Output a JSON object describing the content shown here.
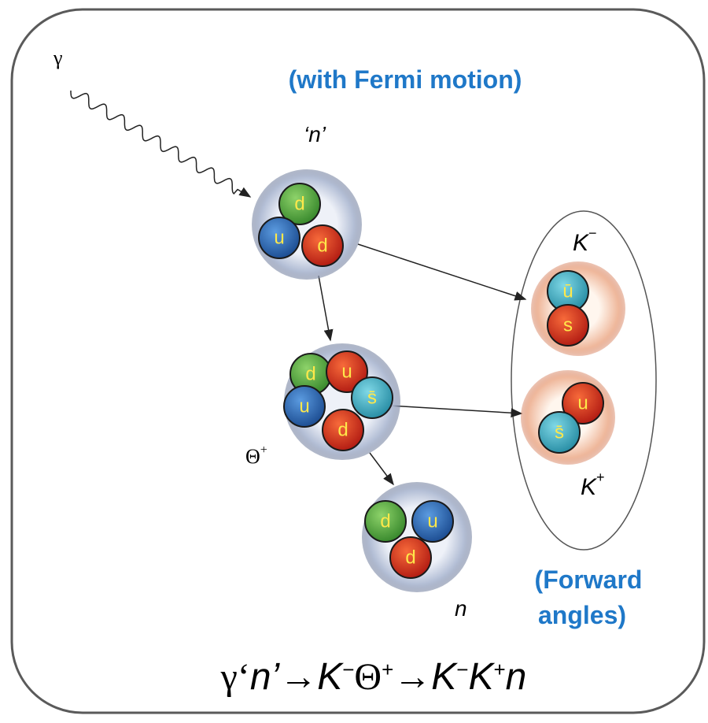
{
  "photon_label": "γ",
  "note_top": "(with Fermi motion)",
  "particles": [
    {
      "label": "‘n’",
      "quarks": [
        "d",
        "u",
        "d"
      ]
    },
    {
      "label": "Θ",
      "charge": "+",
      "quarks": [
        "d",
        "u",
        "s̄",
        "u",
        "d"
      ]
    },
    {
      "label": "n",
      "quarks": [
        "d",
        "u",
        "d"
      ]
    },
    {
      "label": "K",
      "charge": "−",
      "quarks": [
        "ū",
        "s"
      ]
    },
    {
      "label": "K",
      "charge": "+",
      "quarks": [
        "u",
        "s̄"
      ]
    }
  ],
  "note_bottom": [
    "(Forward",
    "angles)"
  ],
  "equation": [
    "γ‘",
    "n’",
    "→",
    "K",
    "−",
    "Θ",
    "+",
    "→",
    "K",
    "−",
    "K",
    "+",
    "n"
  ]
}
